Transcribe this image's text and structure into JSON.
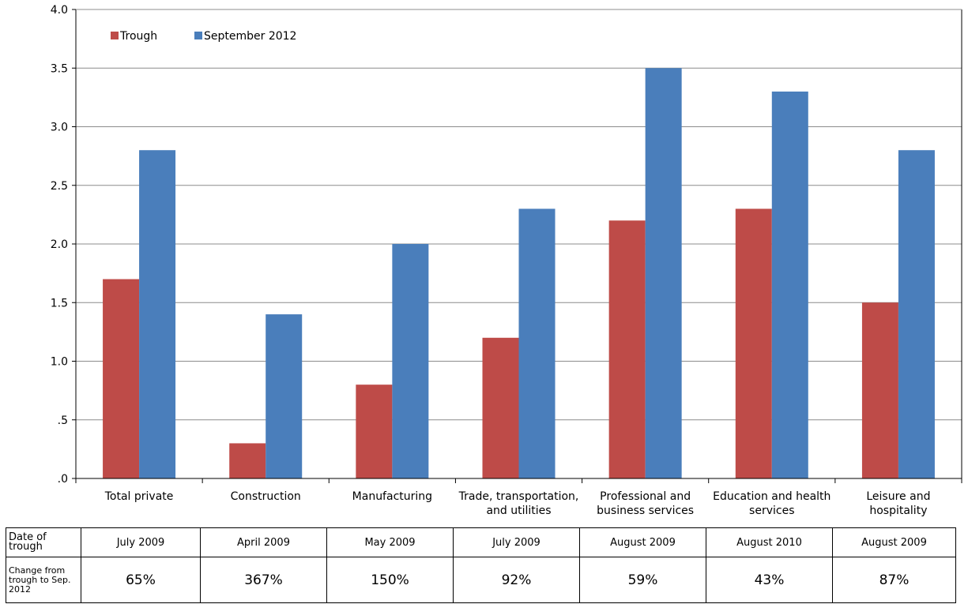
{
  "chart_data": {
    "type": "bar",
    "categories": [
      [
        "Total private"
      ],
      [
        "Construction"
      ],
      [
        "Manufacturing"
      ],
      [
        "Trade, transportation,",
        "and utilities"
      ],
      [
        "Professional and",
        "business services"
      ],
      [
        "Education and health",
        "services"
      ],
      [
        "Leisure and",
        "hospitality"
      ]
    ],
    "series": [
      {
        "name": "Trough",
        "color": "#be4b48",
        "values": [
          1.7,
          0.3,
          0.8,
          1.2,
          2.2,
          2.3,
          1.5
        ]
      },
      {
        "name": "September 2012",
        "color": "#4a7ebb",
        "values": [
          2.8,
          1.4,
          2.0,
          2.3,
          3.5,
          3.3,
          2.8
        ]
      }
    ],
    "yticks": [
      "4.0",
      "3.5",
      "3.0",
      "2.5",
      "2.0",
      "1.5",
      "1.0",
      ".5",
      ".0"
    ],
    "ylim": [
      0,
      4.0
    ],
    "grid": true,
    "legend_position": "top-left",
    "title": "",
    "xlabel": "",
    "ylabel": ""
  },
  "table": {
    "row_labels": {
      "date": "Date of trough",
      "change": "Change from trough to Sep. 2012"
    },
    "dates": [
      "July 2009",
      "April 2009",
      "May 2009",
      "July 2009",
      "August 2009",
      "August 2010",
      "August 2009"
    ],
    "changes": [
      "65%",
      "367%",
      "150%",
      "92%",
      "59%",
      "43%",
      "87%"
    ]
  }
}
